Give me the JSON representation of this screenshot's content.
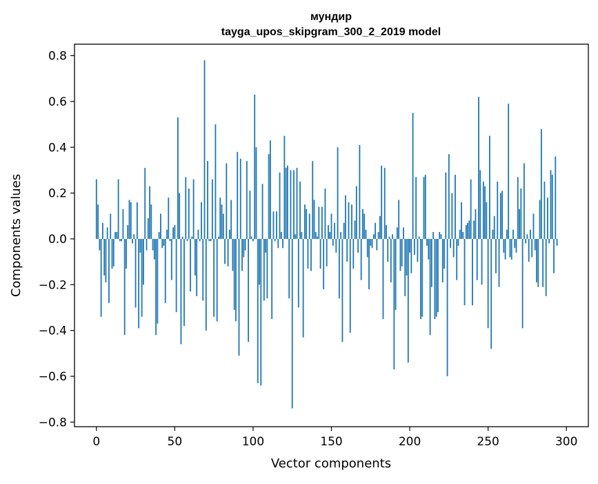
{
  "chart_data": {
    "type": "bar",
    "title": "мундир",
    "subtitle": "tayga_upos_skipgram_300_2_2019 model",
    "xlabel": "Vector components",
    "ylabel": "Components values",
    "xlim": [
      -14,
      314
    ],
    "ylim": [
      -0.82,
      0.85
    ],
    "xticks": [
      0,
      50,
      100,
      150,
      200,
      250,
      300
    ],
    "yticks": [
      0.8,
      0.6,
      0.4,
      0.2,
      0.0,
      -0.2,
      -0.4,
      -0.6,
      -0.8
    ],
    "xtick_labels": [
      "0",
      "50",
      "100",
      "150",
      "200",
      "250",
      "300"
    ],
    "ytick_labels": [
      "0.8",
      "0.6",
      "0.4",
      "0.2",
      "0.0",
      "−0.2",
      "−0.4",
      "−0.6",
      "−0.8"
    ],
    "bar_color": "#1f77b4",
    "grid": false,
    "values": [
      0.26,
      0.15,
      -0.05,
      -0.34,
      0.07,
      -0.16,
      -0.19,
      0.05,
      -0.28,
      0.11,
      -0.13,
      -0.12,
      0.03,
      0.03,
      0.26,
      -0.01,
      -0.01,
      0.13,
      -0.42,
      -0.13,
      0.06,
      0.17,
      0.16,
      -0.02,
      0.02,
      -0.3,
      0.16,
      -0.39,
      -0.06,
      -0.34,
      -0.2,
      0.31,
      -0.05,
      0.09,
      0.23,
      0.15,
      -0.05,
      -0.09,
      -0.42,
      -0.37,
      0.03,
      0.11,
      -0.04,
      -0.03,
      -0.28,
      0.04,
      0.18,
      -0.01,
      -0.18,
      0.05,
      0.06,
      -0.32,
      0.53,
      0.2,
      -0.46,
      0.01,
      -0.38,
      0.27,
      -0.01,
      0.22,
      -0.23,
      0.01,
      0.26,
      -0.16,
      -0.25,
      0.04,
      -0.01,
      0.16,
      -0.27,
      0.78,
      -0.4,
      0.34,
      -0.01,
      -0.01,
      0.26,
      -0.34,
      0.5,
      -0.36,
      0.01,
      0.18,
      0.15,
      0.11,
      -0.11,
      0.33,
      -0.12,
      0.04,
      0.17,
      -0.14,
      -0.31,
      -0.36,
      0.38,
      -0.51,
      0.35,
      -0.14,
      -0.08,
      -0.05,
      0.34,
      -0.45,
      0.21,
      0.01,
      -0.01,
      0.63,
      0.4,
      -0.63,
      -0.2,
      -0.64,
      0.24,
      -0.27,
      -0.06,
      -0.26,
      0.37,
      0.43,
      -0.35,
      0.12,
      -0.01,
      0.12,
      -0.04,
      0.29,
      0.03,
      -0.04,
      0.45,
      0.31,
      0.32,
      -0.26,
      0.3,
      -0.74,
      0.3,
      0.02,
      0.31,
      -0.3,
      0.25,
      0.03,
      -0.43,
      0.15,
      0.13,
      -0.13,
      0.11,
      -0.14,
      0.34,
      0.17,
      0.03,
      0.01,
      0.14,
      -0.13,
      0.14,
      -0.22,
      0.22,
      -0.12,
      0.06,
      0.03,
      0.11,
      -0.03,
      0.07,
      -0.06,
      0.4,
      -0.26,
      0.03,
      -0.45,
      0.07,
      0.19,
      -0.1,
      0.16,
      -0.41,
      0.15,
      -0.13,
      0.08,
      0.23,
      -0.06,
      0.41,
      -0.18,
      0.13,
      0.11,
      0.04,
      -0.08,
      -0.22,
      -0.03,
      -0.04,
      0.02,
      0.07,
      -0.05,
      0.03,
      0.1,
      0.32,
      -0.35,
      0.31,
      0.06,
      -0.1,
      0.01,
      -0.19,
      0.02,
      -0.57,
      -0.31,
      0.05,
      0.17,
      -0.14,
      -0.12,
      0.05,
      -0.25,
      -0.16,
      -0.54,
      -0.06,
      -0.15,
      0.55,
      -0.07,
      0.27,
      -0.1,
      0.01,
      -0.35,
      -0.34,
      0.27,
      0.28,
      -0.03,
      -0.09,
      -0.42,
      -0.21,
      0.03,
      -0.35,
      -0.34,
      -0.32,
      0.03,
      0.02,
      -0.19,
      -0.13,
      0.29,
      -0.6,
      0.37,
      -0.04,
      0.2,
      -0.08,
      0.28,
      -0.18,
      -0.03,
      0.04,
      0.16,
      0.03,
      -0.29,
      0.06,
      0.07,
      0.08,
      0.26,
      -0.29,
      0.08,
      0.13,
      -0.18,
      0.62,
      0.3,
      -0.2,
      0.25,
      0.23,
      0.16,
      -0.39,
      0.45,
      -0.48,
      0.04,
      0.1,
      -0.15,
      0.25,
      -0.21,
      0.2,
      0.21,
      -0.06,
      -0.09,
      0.04,
      0.59,
      -0.08,
      -0.09,
      0.04,
      -0.04,
      -0.06,
      0.27,
      0.13,
      0.22,
      -0.39,
      0.33,
      -0.02,
      0.02,
      -0.1,
      0.04,
      -0.08,
      0.11,
      -0.05,
      -0.19,
      -0.21,
      0.17,
      0.48,
      -0.21,
      0.25,
      -0.25,
      0.18,
      -0.02,
      0.3,
      0.28,
      -0.15,
      0.36,
      -0.03
    ]
  }
}
